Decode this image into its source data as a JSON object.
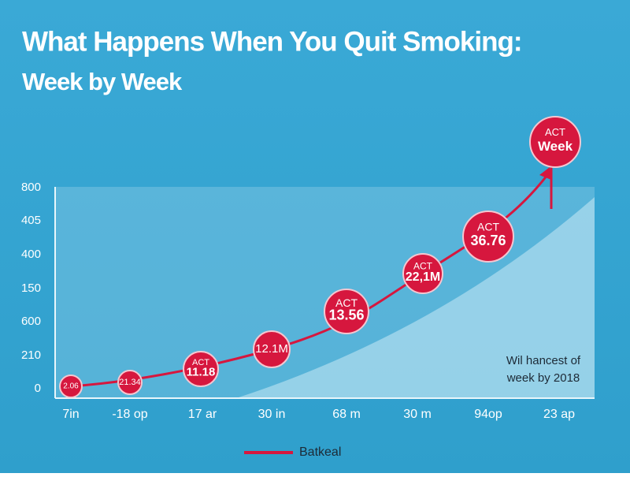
{
  "header": {
    "title": "What Happens When You Quit Smoking:",
    "subtitle": "Week by Week"
  },
  "y_axis_labels": [
    "800",
    "405",
    "400",
    "150",
    "600",
    "210",
    "0"
  ],
  "x_axis_labels": [
    "7in",
    "-18 op",
    "17 ar",
    "30 in",
    "68 m",
    "30 m",
    "94op",
    "23 ap"
  ],
  "points": [
    {
      "label": "2.06"
    },
    {
      "label": "21.34"
    },
    {
      "tag": "ACT",
      "label": "11.18"
    },
    {
      "label": "12.1M"
    },
    {
      "tag": "ACT",
      "label": "13.56"
    },
    {
      "tag": "ACT",
      "label": "22,1M"
    },
    {
      "tag": "ACT",
      "label": "36.76"
    },
    {
      "tag": "ACT",
      "label": "Week"
    }
  ],
  "note": [
    "Wil hancest of",
    "week by 2018"
  ],
  "legend": "Batkeal"
}
